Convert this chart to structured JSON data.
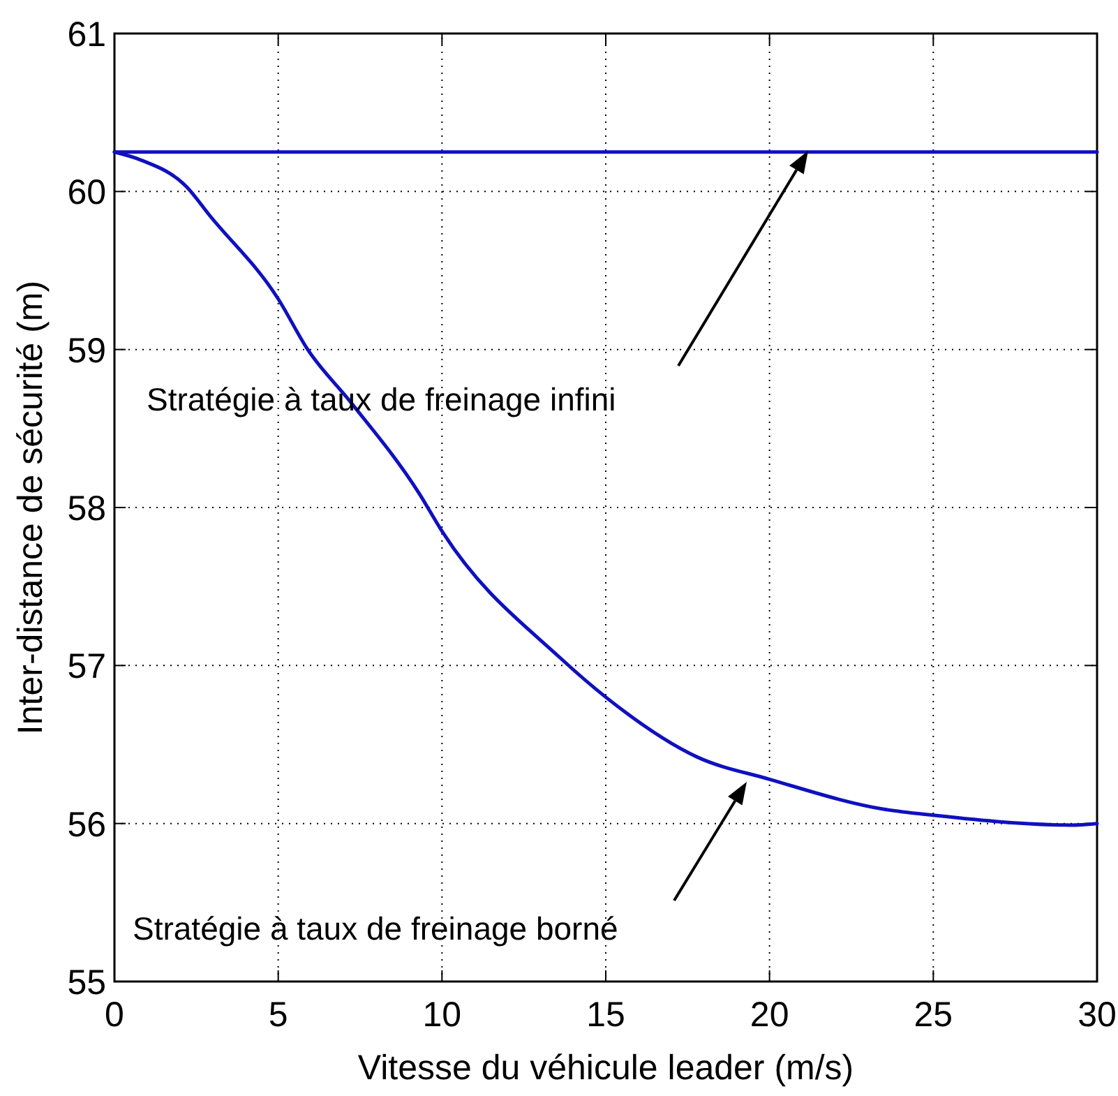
{
  "chart_data": {
    "type": "line",
    "xlabel": "Vitesse du véhicule leader (m/s)",
    "ylabel": "Inter-distance de sécurité (m)",
    "xlim": [
      0,
      30
    ],
    "ylim": [
      55,
      61
    ],
    "xticks": [
      0,
      5,
      10,
      15,
      20,
      25,
      30
    ],
    "yticks": [
      55,
      56,
      57,
      58,
      59,
      60,
      61
    ],
    "grid": true,
    "line_style": "solid",
    "marker": "none",
    "series": [
      {
        "color": "#1010c0",
        "x": [
          0,
          30
        ],
        "values": [
          60.25,
          60.25
        ]
      },
      {
        "color": "#1010c0",
        "x": [
          0,
          0.8,
          2.2,
          2.9,
          5.0,
          5.9,
          7.2,
          9.3,
          10.0,
          13.6,
          15.0,
          17.8,
          20.0,
          23.5,
          25.1,
          27.1,
          29.2,
          30
        ],
        "values": [
          60.25,
          60.2,
          60.03,
          59.85,
          59.32,
          59.0,
          58.67,
          58.09,
          57.85,
          57.05,
          56.8,
          56.42,
          56.28,
          56.09,
          56.05,
          56.01,
          55.99,
          56.0
        ]
      }
    ],
    "annotations": [
      "Stratégie à taux de freinage infini",
      "Stratégie à taux de freinage borné"
    ]
  }
}
